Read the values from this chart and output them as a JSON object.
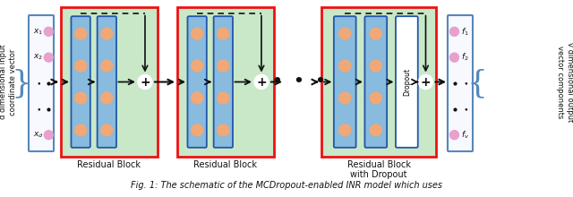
{
  "fig_width": 6.4,
  "fig_height": 2.2,
  "dpi": 100,
  "bg_color": "#ffffff",
  "caption": "Fig. 1: The schematic of the MCDropout-enabled INR model which uses",
  "green_bg": "#c8e8c8",
  "red_border": "#ee1111",
  "blue_layer_color": "#88bbdd",
  "blue_layer_border": "#2255aa",
  "salmon": "#f0a878",
  "salmon_border": "#c07040",
  "pink": "#e8a0cc",
  "pink_border": "#aa55aa",
  "io_box_fill": "#f8f8ff",
  "io_box_border": "#5588bb",
  "arrow_color": "#111111",
  "text_color": "#111111",
  "brace_color": "#5588bb",
  "plus_fill": "#ffffff",
  "plus_border": "#111111",
  "left_text": "d dimensional input\ncoordinate vector",
  "right_text": "v dimensional output\nvector components",
  "lbl1": "Residual Block",
  "lbl2": "Residual Block",
  "lbl3": "Residual Block",
  "lbl3b": "with Dropout"
}
